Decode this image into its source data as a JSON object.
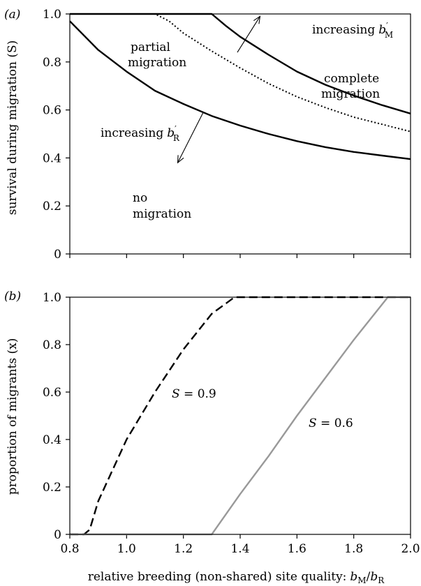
{
  "chart_data": [
    {
      "type": "line",
      "panel_label": "(a)",
      "ylabel": "survival during migration (S)",
      "xlim": [
        0.8,
        2.0
      ],
      "ylim": [
        0,
        1.0
      ],
      "xticks": [
        0.8,
        1.0,
        1.2,
        1.4,
        1.6,
        1.8,
        2.0
      ],
      "yticks": [
        "0",
        "0.2",
        "0.4",
        "0.6",
        "0.8",
        "1.0"
      ],
      "grid": false,
      "series": [
        {
          "style": "solid",
          "color": "#000000",
          "x": [
            0.8,
            0.9,
            1.0,
            1.1,
            1.2,
            1.3,
            1.4,
            1.5,
            1.6,
            1.7,
            1.8,
            1.9,
            2.0
          ],
          "y": [
            0.97,
            0.85,
            0.76,
            0.68,
            0.625,
            0.575,
            0.535,
            0.5,
            0.47,
            0.445,
            0.425,
            0.41,
            0.395
          ]
        },
        {
          "style": "dotted",
          "color": "#000000",
          "x": [
            0.8,
            1.0,
            1.1,
            1.15,
            1.2,
            1.3,
            1.4,
            1.5,
            1.6,
            1.7,
            1.8,
            1.9,
            2.0
          ],
          "y": [
            1.0,
            1.0,
            1.0,
            0.97,
            0.92,
            0.845,
            0.775,
            0.71,
            0.655,
            0.61,
            0.57,
            0.54,
            0.51
          ]
        },
        {
          "style": "solid",
          "color": "#000000",
          "x": [
            0.8,
            1.0,
            1.2,
            1.3,
            1.35,
            1.4,
            1.5,
            1.6,
            1.7,
            1.8,
            1.9,
            2.0
          ],
          "y": [
            1.0,
            1.0,
            1.0,
            1.0,
            0.95,
            0.905,
            0.83,
            0.76,
            0.705,
            0.66,
            0.62,
            0.585
          ]
        }
      ],
      "annotations": {
        "partial": [
          "partial",
          "migration"
        ],
        "complete": [
          "complete",
          "migration"
        ],
        "none": [
          "no",
          "migration"
        ],
        "increasing": "increasing",
        "bM": "b",
        "bM_sub": "M",
        "bR": "b",
        "bR_sub": "R",
        "prime": "′"
      },
      "arrows": [
        {
          "from": [
            1.39,
            0.84
          ],
          "to": [
            1.47,
            0.99
          ]
        },
        {
          "from": [
            1.27,
            0.59
          ],
          "to": [
            1.18,
            0.38
          ]
        }
      ]
    },
    {
      "type": "line",
      "panel_label": "(b)",
      "ylabel": "proportion of migrants (x)",
      "xlabel": "relative breeding (non-shared) site quality:",
      "xlabel_math": {
        "b1": "b",
        "sub1": "M",
        "slash": "/",
        "b2": "b",
        "sub2": "R"
      },
      "xlim": [
        0.8,
        2.0
      ],
      "ylim": [
        0,
        1.0
      ],
      "xticks": [
        "0.8",
        "1.0",
        "1.2",
        "1.4",
        "1.6",
        "1.8",
        "2.0"
      ],
      "yticks": [
        "0",
        "0.2",
        "0.4",
        "0.6",
        "0.8",
        "1.0"
      ],
      "grid": false,
      "series": [
        {
          "label": "S = 0.9",
          "style": "dashed",
          "color": "#000000",
          "x": [
            0.8,
            0.85,
            0.87,
            0.9,
            1.0,
            1.1,
            1.2,
            1.3,
            1.38,
            1.5,
            2.0
          ],
          "y": [
            0.0,
            0.0,
            0.02,
            0.14,
            0.4,
            0.6,
            0.78,
            0.93,
            1.0,
            1.0,
            1.0
          ]
        },
        {
          "label": "S = 0.6",
          "style": "solid",
          "color": "#999999",
          "x": [
            0.8,
            1.29,
            1.3,
            1.4,
            1.5,
            1.6,
            1.7,
            1.8,
            1.92,
            2.0
          ],
          "y": [
            0.0,
            0.0,
            0.0,
            0.17,
            0.33,
            0.5,
            0.66,
            0.82,
            1.0,
            1.0
          ]
        }
      ],
      "series_label_text": {
        "s09": {
          "S": "S",
          "rest": " = 0.9"
        },
        "s06": {
          "S": "S",
          "rest": " = 0.6"
        }
      }
    }
  ]
}
